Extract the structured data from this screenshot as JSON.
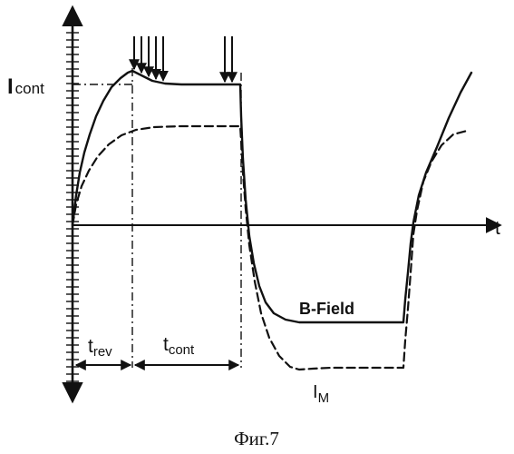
{
  "caption": "Фиг.7",
  "chart_data": {
    "type": "line",
    "title": "",
    "xlabel": "t",
    "ylabel": "",
    "y_tick_label": {
      "main": "I",
      "sub": "cont"
    },
    "interval_labels": [
      {
        "main": "t",
        "sub": "rev"
      },
      {
        "main": "t",
        "sub": "cont"
      }
    ],
    "series": [
      {
        "name": "I",
        "name_sub": "M",
        "style": "solid",
        "points": [
          [
            80,
            248
          ],
          [
            84,
            215
          ],
          [
            88,
            190
          ],
          [
            93,
            168
          ],
          [
            99,
            148
          ],
          [
            106,
            128
          ],
          [
            114,
            111
          ],
          [
            123,
            96
          ],
          [
            133,
            86
          ],
          [
            141,
            80
          ],
          [
            146,
            78
          ],
          [
            156,
            83
          ],
          [
            168,
            89
          ],
          [
            182,
            92
          ],
          [
            200,
            93
          ],
          [
            225,
            93
          ],
          [
            265,
            93
          ],
          [
            266,
            128
          ],
          [
            268,
            175
          ],
          [
            271,
            220
          ],
          [
            275,
            260
          ],
          [
            280,
            290
          ],
          [
            286,
            315
          ],
          [
            293,
            333
          ],
          [
            302,
            345
          ],
          [
            315,
            352
          ],
          [
            330,
            355
          ],
          [
            445,
            355
          ],
          [
            447,
            330
          ],
          [
            450,
            300
          ],
          [
            453,
            268
          ],
          [
            456,
            245
          ],
          [
            462,
            215
          ],
          [
            470,
            190
          ],
          [
            482,
            162
          ],
          [
            495,
            130
          ],
          [
            508,
            102
          ],
          [
            520,
            80
          ]
        ]
      },
      {
        "name": "B-Field",
        "style": "dashed",
        "points": [
          [
            80,
            248
          ],
          [
            84,
            225
          ],
          [
            90,
            205
          ],
          [
            98,
            188
          ],
          [
            108,
            172
          ],
          [
            120,
            159
          ],
          [
            134,
            149
          ],
          [
            150,
            143
          ],
          [
            170,
            140
          ],
          [
            200,
            139
          ],
          [
            265,
            139
          ],
          [
            266,
            155
          ],
          [
            268,
            190
          ],
          [
            271,
            230
          ],
          [
            275,
            270
          ],
          [
            281,
            310
          ],
          [
            288,
            345
          ],
          [
            297,
            372
          ],
          [
            308,
            392
          ],
          [
            320,
            404
          ],
          [
            330,
            407
          ],
          [
            345,
            406
          ],
          [
            365,
            405
          ],
          [
            400,
            405
          ],
          [
            445,
            405
          ],
          [
            447,
            375
          ],
          [
            450,
            340
          ],
          [
            453,
            300
          ],
          [
            456,
            258
          ],
          [
            460,
            232
          ],
          [
            467,
            200
          ],
          [
            476,
            178
          ],
          [
            487,
            160
          ],
          [
            500,
            148
          ],
          [
            515,
            144
          ]
        ]
      }
    ],
    "reference_lines": [
      {
        "orientation": "h",
        "at": 93,
        "from": 80,
        "to": 150,
        "style": "dashdot"
      },
      {
        "orientation": "v",
        "at": 146,
        "from": 75,
        "to": 405,
        "style": "dashdot"
      },
      {
        "orientation": "v",
        "at": 266,
        "from": 80,
        "to": 405,
        "style": "dashdot"
      }
    ],
    "pulse_arrows": {
      "group1": [
        148,
        156,
        164,
        172,
        180
      ],
      "group2": [
        248,
        256
      ]
    },
    "label_pos": {
      "bfield": [
        330,
        346
      ],
      "im": [
        345,
        438
      ]
    }
  }
}
